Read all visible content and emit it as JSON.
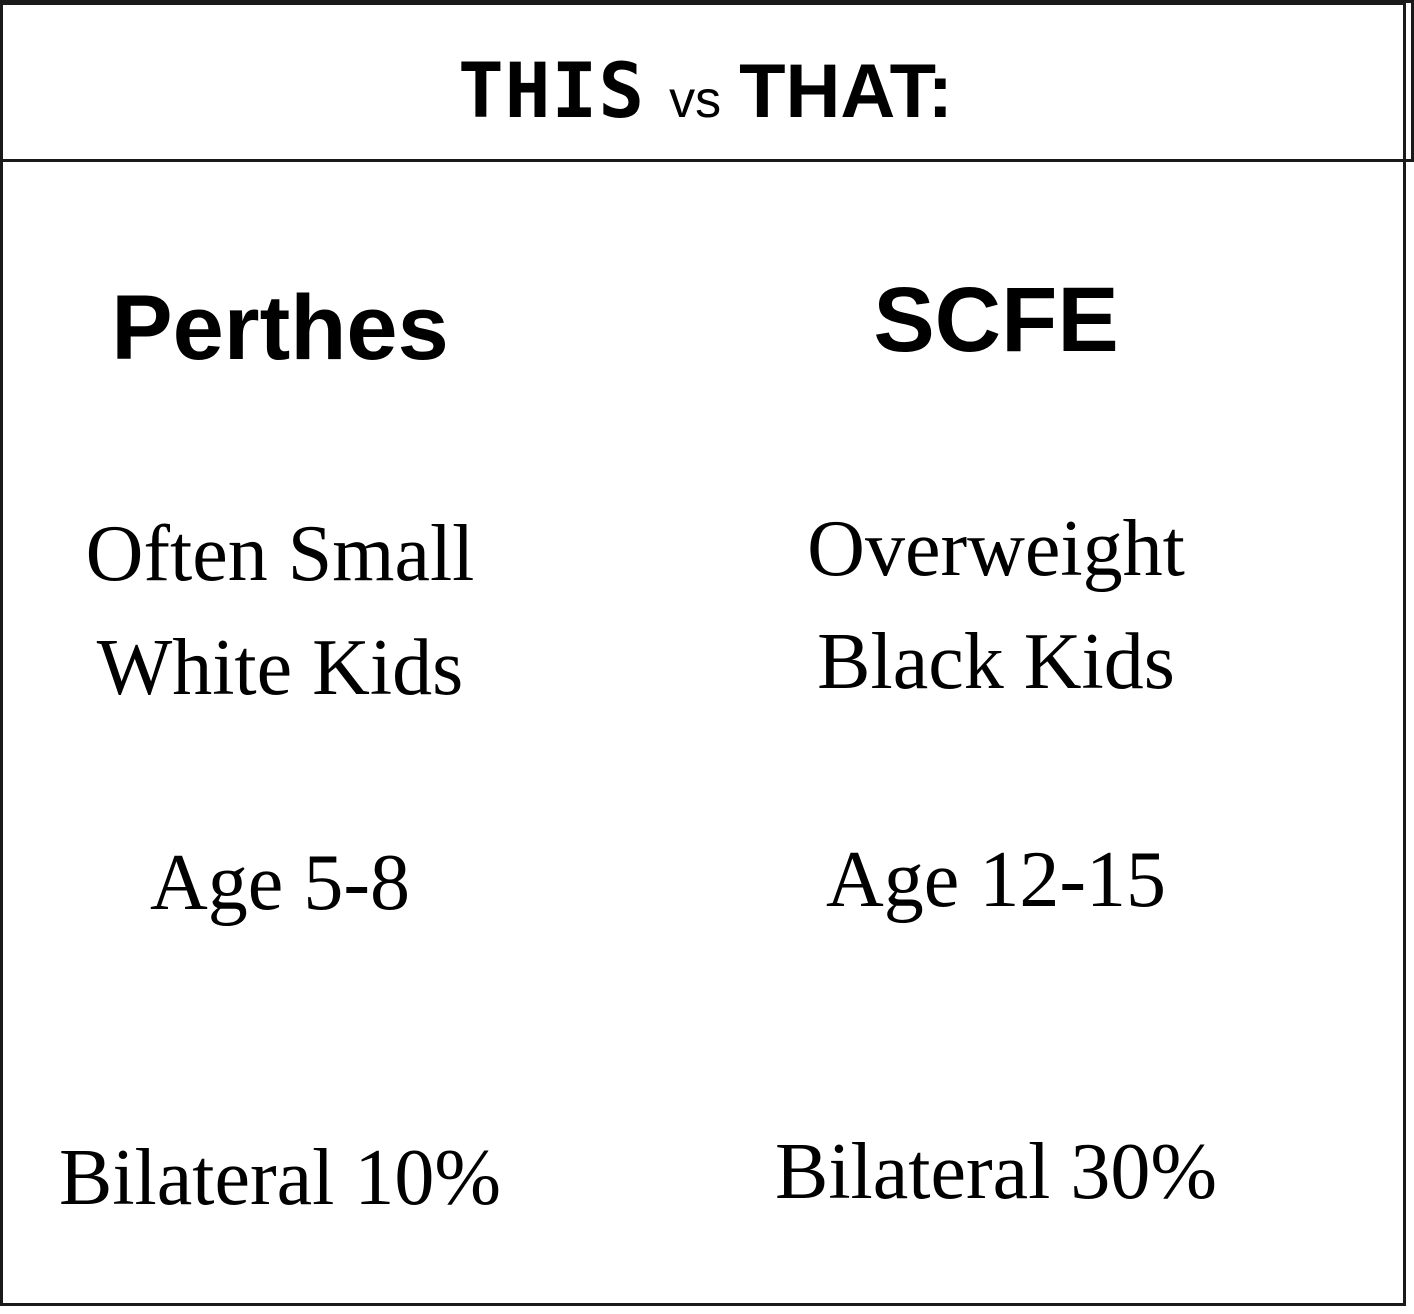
{
  "header": {
    "this_word": "THIS",
    "vs_word": "vs",
    "that_word": "THAT:"
  },
  "columns": [
    {
      "heading": "Perthes",
      "rows": {
        "population_line1": "Often Small",
        "population_line2": "White Kids",
        "age": "Age 5-8",
        "bilateral": "Bilateral 10%"
      }
    },
    {
      "heading": "SCFE",
      "rows": {
        "population_line1": "Overweight",
        "population_line2": "Black Kids",
        "age": "Age 12-15",
        "bilateral": "Bilateral 30%"
      }
    }
  ],
  "colors": {
    "text": "#000000",
    "border": "#1a1a1a",
    "background": "#ffffff"
  }
}
